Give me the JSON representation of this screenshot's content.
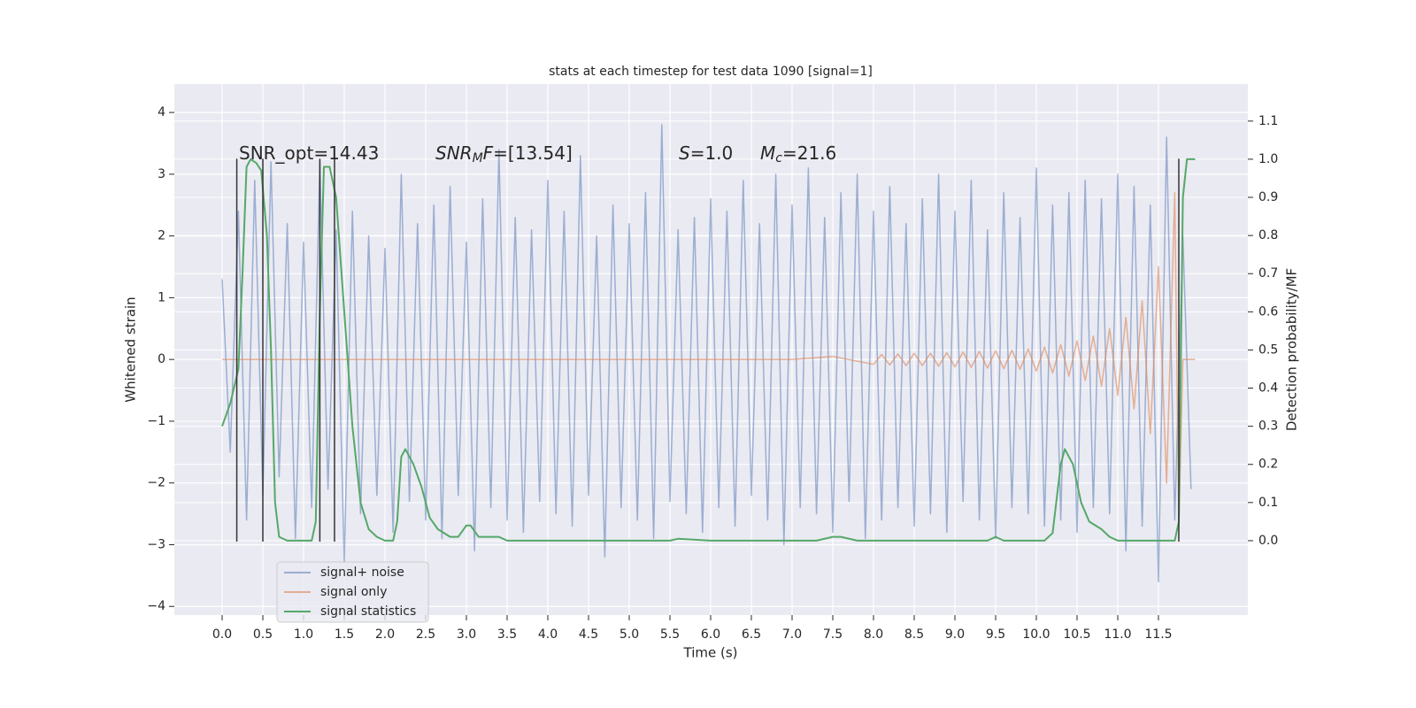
{
  "chart_data": {
    "type": "line",
    "title": "stats at each timestep for test data 1090 [signal=1]",
    "xlabel": "Time (s)",
    "ylabel": "Whitened strain",
    "y2label": "Detection probability/MF",
    "xlim": [
      -0.587,
      12.598
    ],
    "ylim": [
      -4.14,
      4.46
    ],
    "y2lim": [
      -0.195,
      1.197
    ],
    "xticks": [
      {
        "value": 0,
        "label": "0.0"
      },
      0.5,
      {
        "value": 1,
        "label": "1.0"
      },
      1.5,
      {
        "value": 2,
        "label": "2.0"
      },
      2.5,
      {
        "value": 3,
        "label": "3.0"
      },
      3.5,
      {
        "value": 4,
        "label": "4.0"
      },
      4.5,
      {
        "value": 5,
        "label": "5.0"
      },
      5.5,
      {
        "value": 6,
        "label": "6.0"
      },
      6.5,
      {
        "value": 7,
        "label": "7.0"
      },
      7.5,
      {
        "value": 8,
        "label": "8.0"
      },
      8.5,
      {
        "value": 9,
        "label": "9.0"
      },
      9.5,
      {
        "value": 10,
        "label": "10.0"
      },
      10.5,
      {
        "value": 11,
        "label": "11.0"
      },
      11.5
    ],
    "yticks": [
      {
        "value": -4,
        "label": "−4"
      },
      {
        "value": -3,
        "label": "−3"
      },
      {
        "value": -2,
        "label": "−2"
      },
      {
        "value": -1,
        "label": "−1"
      },
      0,
      1,
      2,
      3,
      4
    ],
    "y2ticks": [
      {
        "value": 0,
        "label": "0.0"
      },
      0.1,
      0.2,
      0.3,
      0.4,
      0.5,
      0.6,
      0.7,
      0.8,
      0.9,
      {
        "value": 1,
        "label": "1.0"
      },
      1.1
    ],
    "grid": true,
    "legend": "lower left",
    "series": [
      {
        "name": "signal+ noise",
        "color": "#4c72b0",
        "opacity": 0.5,
        "x": [
          0,
          0.1,
          0.2,
          0.3,
          0.4,
          0.5,
          0.6,
          0.7,
          0.8,
          0.9,
          1,
          1.1,
          1.2,
          1.3,
          1.4,
          1.5,
          1.6,
          1.7,
          1.8,
          1.9,
          2,
          2.1,
          2.2,
          2.3,
          2.4,
          2.5,
          2.6,
          2.7,
          2.8,
          2.9,
          3,
          3.1,
          3.2,
          3.3,
          3.4,
          3.5,
          3.6,
          3.7,
          3.8,
          3.9,
          4,
          4.1,
          4.2,
          4.3,
          4.4,
          4.5,
          4.6,
          4.7,
          4.8,
          4.9,
          5,
          5.1,
          5.2,
          5.3,
          5.4,
          5.5,
          5.6,
          5.7,
          5.8,
          5.9,
          6,
          6.1,
          6.2,
          6.3,
          6.4,
          6.5,
          6.6,
          6.7,
          6.8,
          6.9,
          7,
          7.1,
          7.2,
          7.3,
          7.4,
          7.5,
          7.6,
          7.7,
          7.8,
          7.9,
          8,
          8.1,
          8.2,
          8.3,
          8.4,
          8.5,
          8.6,
          8.7,
          8.8,
          8.9,
          9,
          9.1,
          9.2,
          9.3,
          9.4,
          9.5,
          9.6,
          9.7,
          9.8,
          9.9,
          10,
          10.1,
          10.2,
          10.3,
          10.4,
          10.5,
          10.6,
          10.7,
          10.8,
          10.9,
          11,
          11.1,
          11.2,
          11.3,
          11.4,
          11.5,
          11.6,
          11.7,
          11.8,
          11.9
        ],
        "values": [
          1.3,
          -1.5,
          2.4,
          -2.6,
          2.9,
          -2.2,
          3.2,
          -1.9,
          2.2,
          -2.9,
          1.9,
          -2.4,
          3.2,
          -2.1,
          2.1,
          -3.3,
          2.4,
          -2.5,
          2.0,
          -2.2,
          1.8,
          -2.8,
          3.0,
          -2.3,
          2.2,
          -2.6,
          2.5,
          -2.9,
          2.8,
          -2.2,
          1.9,
          -3.1,
          2.6,
          -2.4,
          3.4,
          -2.6,
          2.3,
          -2.8,
          2.1,
          -2.3,
          2.9,
          -2.5,
          2.4,
          -2.7,
          3.3,
          -2.2,
          2.0,
          -3.2,
          2.5,
          -2.4,
          2.2,
          -2.6,
          2.7,
          -2.9,
          3.8,
          -2.3,
          2.1,
          -2.5,
          2.3,
          -2.8,
          2.6,
          -2.4,
          2.4,
          -2.7,
          2.9,
          -2.2,
          2.2,
          -2.6,
          3.0,
          -3.0,
          2.5,
          -2.4,
          3.1,
          -2.5,
          2.3,
          -2.8,
          2.7,
          -2.3,
          3.0,
          -2.9,
          2.4,
          -2.6,
          2.8,
          -2.4,
          2.2,
          -2.7,
          2.6,
          -2.5,
          3.0,
          -2.8,
          2.4,
          -2.3,
          2.9,
          -2.6,
          2.1,
          -2.9,
          2.7,
          -2.4,
          2.3,
          -2.5,
          3.1,
          -2.7,
          2.5,
          -2.6,
          2.7,
          -2.8,
          2.9,
          -2.4,
          2.6,
          -2.5,
          3.0,
          -3.1,
          2.8,
          -2.7,
          2.5,
          -3.6,
          3.6,
          -2.6,
          2.0,
          -2.1
        ]
      },
      {
        "name": "signal only",
        "color": "#dd8452",
        "opacity": 0.6,
        "x": [
          0,
          1,
          2,
          3,
          4,
          5,
          6,
          7,
          7.5,
          8,
          8.1,
          8.2,
          8.3,
          8.4,
          8.5,
          8.6,
          8.7,
          8.8,
          8.9,
          9,
          9.1,
          9.2,
          9.3,
          9.4,
          9.5,
          9.6,
          9.7,
          9.8,
          9.9,
          10,
          10.1,
          10.2,
          10.3,
          10.4,
          10.5,
          10.6,
          10.7,
          10.8,
          10.9,
          11,
          11.1,
          11.2,
          11.3,
          11.4,
          11.5,
          11.6,
          11.7,
          11.75,
          11.8,
          11.95
        ],
        "values": [
          0,
          0,
          0,
          0,
          0,
          0,
          0,
          0,
          0.05,
          -0.08,
          0.08,
          -0.09,
          0.09,
          -0.1,
          0.1,
          -0.1,
          0.1,
          -0.11,
          0.11,
          -0.12,
          0.12,
          -0.13,
          0.13,
          -0.14,
          0.14,
          -0.15,
          0.15,
          -0.16,
          0.17,
          -0.19,
          0.2,
          -0.22,
          0.24,
          -0.27,
          0.3,
          -0.34,
          0.38,
          -0.43,
          0.5,
          -0.58,
          0.68,
          -0.8,
          0.95,
          -1.2,
          1.5,
          -2.0,
          2.7,
          -2.7,
          0,
          0
        ]
      },
      {
        "name": "signal statistics",
        "color": "#55a868",
        "axis": "y2",
        "x": [
          0,
          0.1,
          0.2,
          0.25,
          0.3,
          0.35,
          0.42,
          0.48,
          0.55,
          0.6,
          0.65,
          0.7,
          0.8,
          1.0,
          1.1,
          1.15,
          1.2,
          1.25,
          1.32,
          1.4,
          1.5,
          1.6,
          1.7,
          1.8,
          1.9,
          2.0,
          2.1,
          2.15,
          2.2,
          2.25,
          2.35,
          2.45,
          2.55,
          2.65,
          2.8,
          2.9,
          3.0,
          3.05,
          3.15,
          3.4,
          3.5,
          4.0,
          5.5,
          5.6,
          6.0,
          7.3,
          7.5,
          7.6,
          7.8,
          9.4,
          9.5,
          9.6,
          10.1,
          10.2,
          10.3,
          10.35,
          10.45,
          10.55,
          10.65,
          10.8,
          10.9,
          11.0,
          11.7,
          11.75,
          11.8,
          11.85,
          11.95
        ],
        "values": [
          0.3,
          0.36,
          0.45,
          0.7,
          0.98,
          1.0,
          0.99,
          0.97,
          0.8,
          0.5,
          0.1,
          0.01,
          0,
          0,
          0,
          0.05,
          0.6,
          0.98,
          0.98,
          0.9,
          0.6,
          0.3,
          0.1,
          0.03,
          0.01,
          0,
          0,
          0.05,
          0.22,
          0.24,
          0.2,
          0.14,
          0.06,
          0.03,
          0.01,
          0.01,
          0.04,
          0.04,
          0.01,
          0.01,
          0,
          0,
          0,
          0.005,
          0,
          0,
          0.01,
          0.01,
          0,
          0,
          0.01,
          0,
          0,
          0.02,
          0.2,
          0.24,
          0.2,
          0.1,
          0.05,
          0.03,
          0.01,
          0,
          0,
          0.05,
          0.9,
          1.0,
          1.0
        ]
      }
    ],
    "vlines": {
      "x": [
        0.18,
        0.5,
        1.2,
        1.38,
        11.75
      ],
      "ymin": -2.95,
      "ymax": 3.25,
      "color": "#333333"
    },
    "annotations": [
      {
        "parts": [
          {
            "text": "SNR_opt=14.43"
          }
        ]
      },
      {
        "parts": [
          {
            "text": "SNR",
            "style": "italic"
          },
          {
            "text": "M",
            "style": "sub"
          },
          {
            "text": "F",
            "style": "italic"
          },
          {
            "text": "=[13.54]"
          }
        ]
      },
      {
        "parts": [
          {
            "text": "S",
            "style": "italic"
          },
          {
            "text": "=1.0"
          }
        ]
      },
      {
        "parts": [
          {
            "text": "M",
            "style": "italic"
          },
          {
            "text": "c",
            "style": "sub"
          },
          {
            "text": "=21.6"
          }
        ]
      }
    ]
  }
}
